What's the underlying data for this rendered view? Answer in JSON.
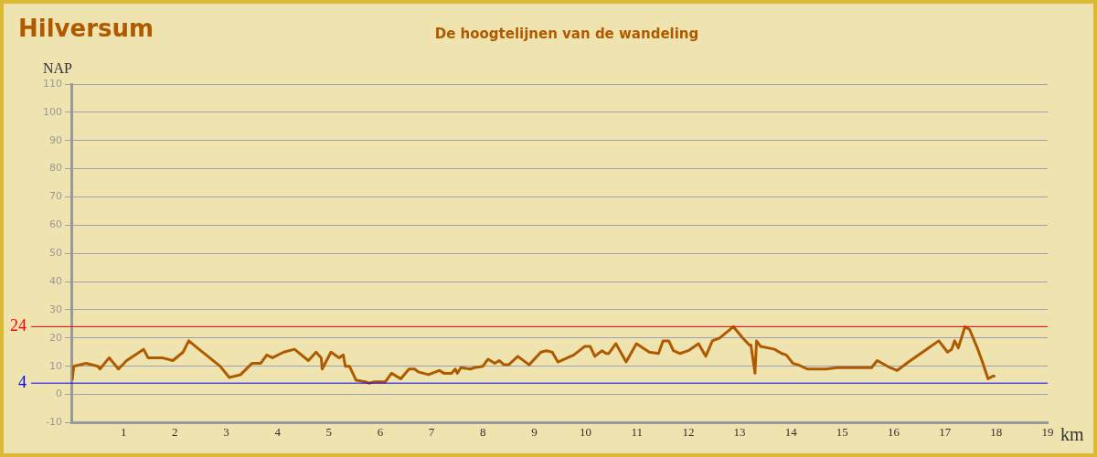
{
  "chart_data": {
    "type": "line",
    "title": "Hilversum",
    "subtitle": "De hoogtelijnen van de wandeling",
    "xlabel": "km",
    "ylabel": "NAP",
    "x": [
      0,
      0.03,
      0.27,
      0.5,
      0.54,
      0.72,
      0.9,
      1.06,
      1.39,
      1.48,
      1.75,
      1.96,
      2.16,
      2.27,
      2.47,
      2.61,
      2.88,
      3.06,
      3.28,
      3.5,
      3.67,
      3.79,
      3.9,
      4.12,
      4.33,
      4.6,
      4.75,
      4.85,
      4.87,
      5.04,
      5.2,
      5.28,
      5.32,
      5.4,
      5.53,
      5.71,
      5.78,
      5.89,
      6.1,
      6.22,
      6.4,
      6.56,
      6.67,
      6.74,
      6.94,
      7.15,
      7.24,
      7.39,
      7.46,
      7.5,
      7.57,
      7.75,
      7.84,
      8.0,
      8.1,
      8.23,
      8.32,
      8.41,
      8.5,
      8.68,
      8.9,
      9.13,
      9.24,
      9.35,
      9.46,
      9.77,
      9.98,
      10.09,
      10.18,
      10.32,
      10.4,
      10.45,
      10.59,
      10.79,
      10.99,
      11.24,
      11.42,
      11.51,
      11.62,
      11.71,
      11.84,
      12.0,
      12.2,
      12.34,
      12.47,
      12.61,
      12.88,
      13.06,
      13.19,
      13.22,
      13.3,
      13.33,
      13.41,
      13.68,
      13.82,
      13.91,
      14.04,
      14.14,
      14.32,
      14.68,
      14.9,
      15.57,
      15.68,
      15.93,
      16.07,
      16.29,
      16.88,
      17.05,
      17.13,
      17.19,
      17.26,
      17.39,
      17.48,
      17.64,
      17.73,
      17.84,
      17.93,
      17.98
    ],
    "series": [
      {
        "color": "#b05a00",
        "values": [
          5,
          10,
          11,
          10,
          9,
          13,
          9,
          12,
          16,
          13,
          13,
          12,
          15,
          19,
          16,
          14,
          10,
          6,
          7,
          11,
          11,
          14,
          13,
          15,
          16,
          12,
          15,
          13,
          9,
          15,
          13,
          14,
          10,
          10,
          5,
          4.5,
          4,
          4.5,
          4.5,
          7.5,
          5.5,
          9,
          9,
          8,
          7,
          8.5,
          7.5,
          7.5,
          9,
          7.5,
          9.5,
          9,
          9.5,
          10,
          12.5,
          11,
          12,
          10.5,
          10.5,
          13.5,
          10.5,
          15,
          15.5,
          15,
          11.5,
          14,
          17,
          17,
          13.5,
          15.5,
          14.5,
          14.5,
          18,
          11.5,
          18,
          15,
          14.5,
          19,
          19,
          15.5,
          14.5,
          15.5,
          18,
          13.5,
          19,
          20,
          24,
          20,
          17.5,
          17.5,
          7.5,
          19,
          17,
          16,
          14.5,
          14,
          11,
          10.5,
          9,
          9,
          9.5,
          9.5,
          12,
          9.5,
          8.5,
          11.5,
          19,
          15,
          16,
          19,
          16.5,
          24,
          23,
          16,
          11.5,
          5.5,
          6.5,
          6.5
        ]
      }
    ],
    "xlim": [
      0,
      19
    ],
    "xticks": [
      1,
      2,
      3,
      4,
      5,
      6,
      7,
      8,
      9,
      10,
      11,
      12,
      13,
      14,
      15,
      16,
      17,
      18,
      19
    ],
    "ylim": [
      -10,
      110
    ],
    "yticks": [
      -10,
      0,
      10,
      20,
      30,
      40,
      50,
      60,
      70,
      80,
      90,
      100,
      110
    ],
    "grid": "y",
    "legend": false,
    "marker": "none",
    "line_style": "solid",
    "ref_lines": [
      {
        "axis": "y",
        "value": 24,
        "label": "24",
        "color": "#ff0000"
      },
      {
        "axis": "y",
        "value": 4,
        "label": "4",
        "color": "#0000ff"
      }
    ]
  }
}
